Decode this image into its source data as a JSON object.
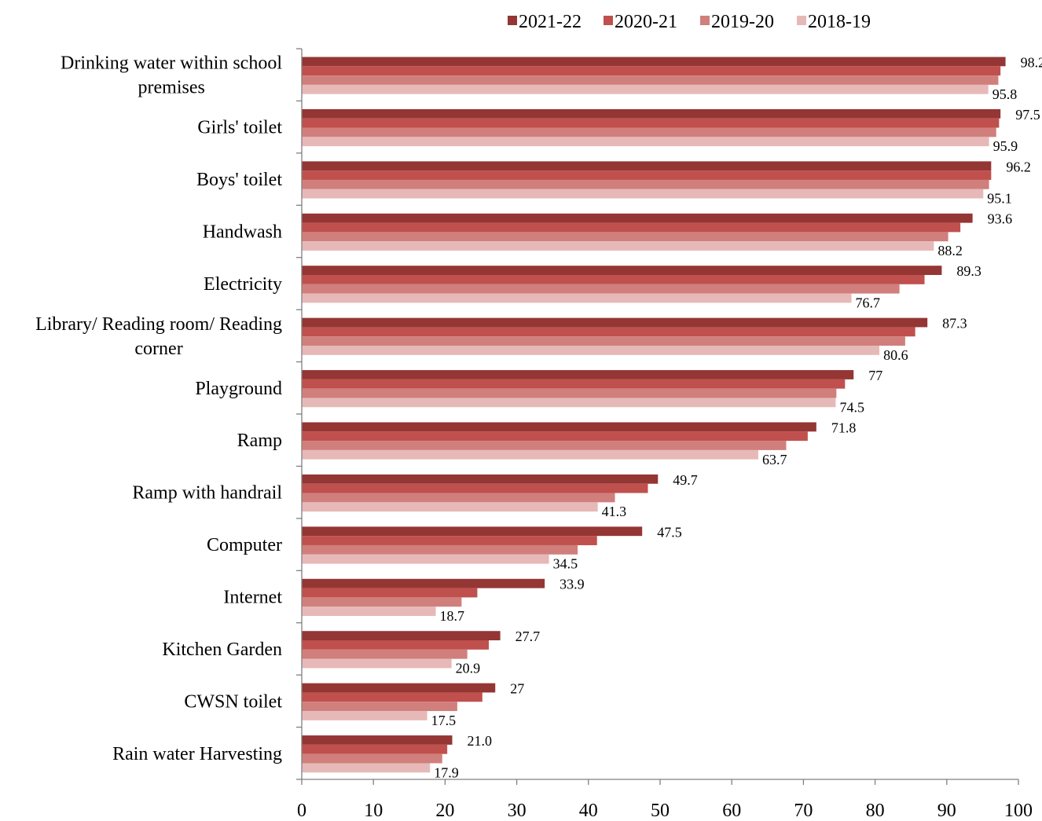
{
  "chart_data": {
    "type": "bar",
    "orientation": "horizontal",
    "categories": [
      "Drinking water within school premises",
      "Girls' toilet",
      "Boys' toilet",
      "Handwash",
      "Electricity",
      "Library/ Reading room/ Reading corner",
      "Playground",
      "Ramp",
      "Ramp with handrail",
      "Computer",
      "Internet",
      "Kitchen Garden",
      "CWSN toilet",
      "Rain water Harvesting"
    ],
    "category_lines": [
      [
        "Drinking water within school",
        "premises"
      ],
      [
        "Girls' toilet"
      ],
      [
        "Boys' toilet"
      ],
      [
        "Handwash"
      ],
      [
        "Electricity"
      ],
      [
        "Library/ Reading room/ Reading",
        "corner"
      ],
      [
        "Playground"
      ],
      [
        "Ramp"
      ],
      [
        "Ramp with handrail"
      ],
      [
        "Computer"
      ],
      [
        "Internet"
      ],
      [
        "Kitchen Garden"
      ],
      [
        "CWSN toilet"
      ],
      [
        "Rain water Harvesting"
      ]
    ],
    "series": [
      {
        "name": "2021-22",
        "color": "#943634",
        "values": [
          98.2,
          97.5,
          96.2,
          93.6,
          89.3,
          87.3,
          77,
          71.8,
          49.7,
          47.5,
          33.9,
          27.7,
          27,
          21.0
        ]
      },
      {
        "name": "2020-21",
        "color": "#c0504d",
        "values": [
          97.5,
          97.3,
          96.2,
          91.9,
          86.9,
          85.6,
          75.8,
          70.6,
          48.3,
          41.2,
          24.5,
          26.1,
          25.2,
          20.3
        ]
      },
      {
        "name": "2019-20",
        "color": "#d07f7c",
        "values": [
          97.2,
          96.9,
          95.9,
          90.2,
          83.4,
          84.2,
          74.6,
          67.6,
          43.7,
          38.5,
          22.3,
          23.1,
          21.7,
          19.6
        ]
      },
      {
        "name": "2018-19",
        "color": "#e6b9b8",
        "values": [
          95.8,
          95.9,
          95.1,
          88.2,
          76.7,
          80.6,
          74.5,
          63.7,
          41.3,
          34.5,
          18.7,
          20.9,
          17.5,
          17.9
        ]
      }
    ],
    "data_labels": {
      "2021-22": [
        "98.2",
        "97.5",
        "96.2",
        "93.6",
        "89.3",
        "87.3",
        "77",
        "71.8",
        "49.7",
        "47.5",
        "33.9",
        "27.7",
        "27",
        "21.0"
      ],
      "2018-19": [
        "95.8",
        "95.9",
        "95.1",
        "88.2",
        "76.7",
        "80.6",
        "74.5",
        "63.7",
        "41.3",
        "34.5",
        "18.7",
        "20.9",
        "17.5",
        "17.9"
      ]
    },
    "x_ticks": [
      "0",
      "10",
      "20",
      "30",
      "40",
      "50",
      "60",
      "70",
      "80",
      "90",
      "100"
    ],
    "xlim": [
      0,
      100
    ],
    "legend_position": "top",
    "grid": false
  }
}
